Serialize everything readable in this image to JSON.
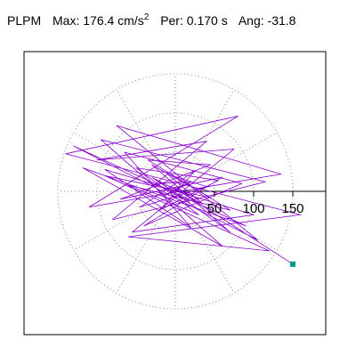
{
  "header": {
    "component": "PLPM",
    "max_label": "Max:",
    "max_value": "176.4 cm/s",
    "max_exponent": "2",
    "period_label": "Per:",
    "period_value": "0.170 s",
    "angle_label": "Ang:",
    "angle_value": "-31.8"
  },
  "chart_data": {
    "type": "line",
    "subtype": "polar-particle-motion",
    "title": "",
    "xlabel": "",
    "ylabel": "",
    "radial_ticks": [
      50,
      100,
      150
    ],
    "radial_tick_labels": [
      "50",
      "100",
      "150"
    ],
    "rings": [
      50,
      100,
      150
    ],
    "spoke_angles_deg": [
      0,
      30,
      60,
      90,
      120,
      150,
      180,
      210,
      240,
      270,
      300,
      330
    ],
    "max_amplitude": 176.4,
    "peak_angle_deg": -31.8,
    "end_point": {
      "x": 150,
      "y": -93
    },
    "colors": {
      "trace": "#8800cc",
      "end_marker": "#009988",
      "grid": "#888888"
    },
    "series": [
      {
        "x": [
          0,
          10,
          -15,
          20,
          -25,
          18,
          -30,
          35,
          -10,
          40,
          -45,
          25,
          -20,
          55,
          -50,
          30,
          -60,
          70,
          -35,
          45,
          -70,
          60,
          -40,
          85,
          -65,
          20,
          -90,
          100,
          -55,
          75,
          -100,
          40,
          -80,
          115,
          -95,
          60,
          -118,
          90,
          -130,
          105,
          -75,
          135,
          -110,
          80,
          -140,
          160,
          -60,
          120,
          -90,
          45,
          -30,
          70,
          -20,
          30,
          0,
          150
        ],
        "y": [
          0,
          8,
          -6,
          12,
          10,
          -14,
          18,
          -16,
          22,
          6,
          -20,
          26,
          -24,
          14,
          30,
          -30,
          8,
          -24,
          40,
          34,
          -10,
          18,
          -44,
          10,
          50,
          -46,
          28,
          -30,
          -52,
          54,
          40,
          64,
          -36,
          12,
          66,
          -70,
          30,
          -44,
          58,
          -62,
          84,
          22,
          -20,
          96,
          48,
          -30,
          -58,
          -76,
          20,
          -8,
          34,
          -52,
          12,
          -10,
          4,
          -93
        ]
      }
    ]
  }
}
